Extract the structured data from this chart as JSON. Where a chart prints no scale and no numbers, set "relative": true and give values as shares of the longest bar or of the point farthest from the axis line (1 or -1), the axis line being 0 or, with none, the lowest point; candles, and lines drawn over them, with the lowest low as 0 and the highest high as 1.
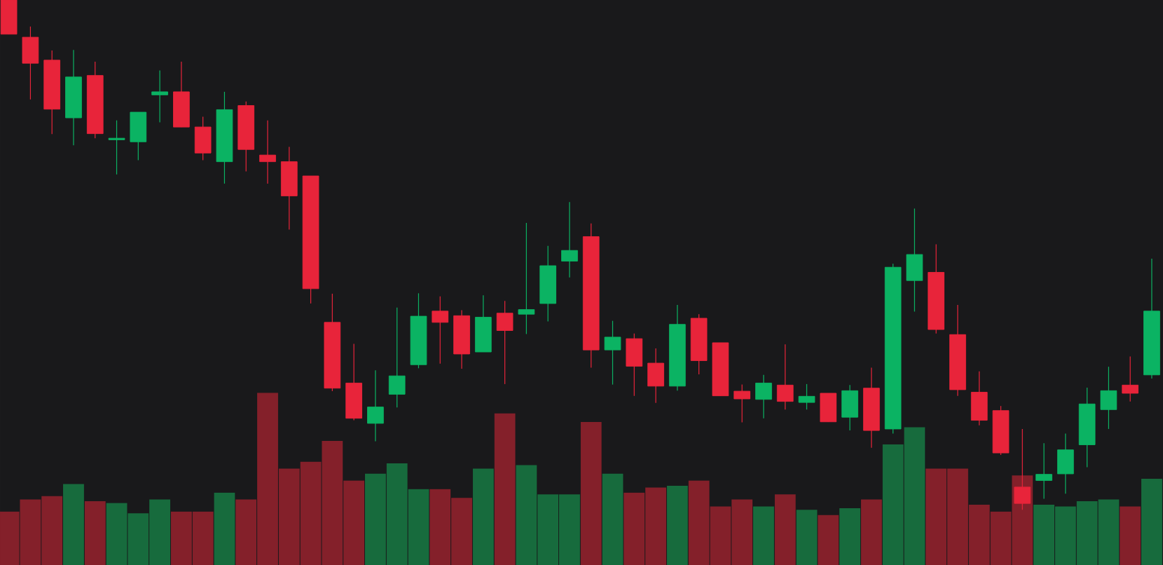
{
  "chart_data": [
    {
      "type": "candlestick",
      "relative": true,
      "categories": [
        null,
        null,
        null,
        null,
        null,
        null,
        null,
        null,
        null,
        null,
        null,
        null,
        null,
        null,
        null,
        null,
        null,
        null,
        null,
        null,
        null,
        null,
        null,
        null,
        null,
        null,
        null,
        null,
        null,
        null,
        null,
        null,
        null,
        null,
        null,
        null,
        null,
        null,
        null,
        null,
        null,
        null,
        null,
        null,
        null,
        null,
        null,
        null,
        null,
        null,
        null,
        null,
        null,
        null
      ],
      "ohlc": [
        [
          1.0,
          1.0,
          0.933,
          0.933
        ],
        [
          0.927,
          0.948,
          0.805,
          0.876
        ],
        [
          0.882,
          0.901,
          0.737,
          0.786
        ],
        [
          0.769,
          0.902,
          0.715,
          0.849
        ],
        [
          0.852,
          0.879,
          0.729,
          0.738
        ],
        [
          0.726,
          0.764,
          0.658,
          0.729
        ],
        [
          0.722,
          0.78,
          0.686,
          0.78
        ],
        [
          0.814,
          0.862,
          0.76,
          0.82
        ],
        [
          0.82,
          0.879,
          0.751,
          0.751
        ],
        [
          0.751,
          0.771,
          0.686,
          0.7
        ],
        [
          0.683,
          0.82,
          0.64,
          0.785
        ],
        [
          0.793,
          0.801,
          0.664,
          0.707
        ],
        [
          0.696,
          0.764,
          0.64,
          0.683
        ],
        [
          0.683,
          0.712,
          0.55,
          0.616
        ],
        [
          0.655,
          0.655,
          0.405,
          0.434
        ],
        [
          0.368,
          0.424,
          0.233,
          0.239
        ],
        [
          0.249,
          0.326,
          0.176,
          0.18
        ],
        [
          0.17,
          0.274,
          0.135,
          0.202
        ],
        [
          0.227,
          0.397,
          0.201,
          0.263
        ],
        [
          0.285,
          0.425,
          0.278,
          0.38
        ],
        [
          0.39,
          0.419,
          0.287,
          0.368
        ],
        [
          0.381,
          0.392,
          0.277,
          0.306
        ],
        [
          0.31,
          0.421,
          0.31,
          0.378
        ],
        [
          0.386,
          0.41,
          0.247,
          0.352
        ],
        [
          0.384,
          0.563,
          0.345,
          0.393
        ],
        [
          0.405,
          0.518,
          0.37,
          0.479
        ],
        [
          0.488,
          0.604,
          0.456,
          0.509
        ],
        [
          0.536,
          0.562,
          0.279,
          0.314
        ],
        [
          0.314,
          0.371,
          0.246,
          0.339
        ],
        [
          0.336,
          0.346,
          0.224,
          0.282
        ],
        [
          0.288,
          0.317,
          0.21,
          0.243
        ],
        [
          0.243,
          0.402,
          0.234,
          0.364
        ],
        [
          0.376,
          0.384,
          0.266,
          0.293
        ],
        [
          0.328,
          0.328,
          0.224,
          0.224
        ],
        [
          0.233,
          0.246,
          0.172,
          0.218
        ],
        [
          0.217,
          0.265,
          0.18,
          0.249
        ],
        [
          0.245,
          0.325,
          0.197,
          0.213
        ],
        [
          0.211,
          0.247,
          0.197,
          0.223
        ],
        [
          0.229,
          0.229,
          0.173,
          0.173
        ],
        [
          0.182,
          0.245,
          0.156,
          0.234
        ],
        [
          0.239,
          0.279,
          0.122,
          0.156
        ],
        [
          0.159,
          0.483,
          0.15,
          0.476
        ],
        [
          0.45,
          0.591,
          0.389,
          0.501
        ],
        [
          0.466,
          0.521,
          0.346,
          0.354
        ],
        [
          0.344,
          0.402,
          0.224,
          0.236
        ],
        [
          0.231,
          0.272,
          0.166,
          0.176
        ],
        [
          0.195,
          0.204,
          0.108,
          0.112
        ],
        [
          0.045,
          0.159,
          0.0,
          0.013
        ],
        [
          0.058,
          0.131,
          0.022,
          0.07
        ],
        [
          0.071,
          0.15,
          0.032,
          0.118
        ],
        [
          0.128,
          0.24,
          0.084,
          0.208
        ],
        [
          0.197,
          0.281,
          0.159,
          0.234
        ],
        [
          0.245,
          0.301,
          0.213,
          0.229
        ],
        [
          0.265,
          0.493,
          0.258,
          0.39
        ]
      ],
      "colors": [
        "#e8243a",
        "#e8243a",
        "#e8243a",
        "#0bb363",
        "#e8243a",
        "#0bb363",
        "#0bb363",
        "#0bb363",
        "#e8243a",
        "#e8243a",
        "#0bb363",
        "#e8243a",
        "#e8243a",
        "#e8243a",
        "#e8243a",
        "#e8243a",
        "#e8243a",
        "#0bb363",
        "#0bb363",
        "#0bb363",
        "#e8243a",
        "#e8243a",
        "#0bb363",
        "#e8243a",
        "#0bb363",
        "#0bb363",
        "#0bb363",
        "#e8243a",
        "#0bb363",
        "#e8243a",
        "#e8243a",
        "#0bb363",
        "#e8243a",
        "#e8243a",
        "#e8243a",
        "#0bb363",
        "#e8243a",
        "#0bb363",
        "#e8243a",
        "#0bb363",
        "#e8243a",
        "#0bb363",
        "#0bb363",
        "#e8243a",
        "#e8243a",
        "#e8243a",
        "#e8243a",
        "#e8243a",
        "#0bb363",
        "#0bb363",
        "#0bb363",
        "#0bb363",
        "#e8243a",
        "#0bb363"
      ]
    },
    {
      "type": "bar",
      "relative": true,
      "categories": [
        null,
        null,
        null,
        null,
        null,
        null,
        null,
        null,
        null,
        null,
        null,
        null,
        null,
        null,
        null,
        null,
        null,
        null,
        null,
        null,
        null,
        null,
        null,
        null,
        null,
        null,
        null,
        null,
        null,
        null,
        null,
        null,
        null,
        null,
        null,
        null,
        null,
        null,
        null,
        null,
        null,
        null,
        null,
        null,
        null,
        null,
        null,
        null,
        null,
        null,
        null,
        null,
        null,
        null
      ],
      "values": [
        0.31,
        0.38,
        0.4,
        0.47,
        0.37,
        0.36,
        0.3,
        0.38,
        0.31,
        0.31,
        0.42,
        0.38,
        1.0,
        0.56,
        0.6,
        0.72,
        0.49,
        0.53,
        0.59,
        0.44,
        0.44,
        0.39,
        0.56,
        0.88,
        0.58,
        0.41,
        0.41,
        0.83,
        0.53,
        0.42,
        0.45,
        0.46,
        0.49,
        0.34,
        0.38,
        0.34,
        0.41,
        0.32,
        0.29,
        0.33,
        0.38,
        0.7,
        0.8,
        0.56,
        0.56,
        0.35,
        0.31,
        0.52,
        0.35,
        0.34,
        0.37,
        0.38,
        0.34,
        0.5
      ],
      "colors": [
        "#84202a",
        "#84202a",
        "#84202a",
        "#176b3d",
        "#84202a",
        "#176b3d",
        "#176b3d",
        "#176b3d",
        "#84202a",
        "#84202a",
        "#176b3d",
        "#84202a",
        "#84202a",
        "#84202a",
        "#84202a",
        "#84202a",
        "#84202a",
        "#176b3d",
        "#176b3d",
        "#176b3d",
        "#84202a",
        "#84202a",
        "#176b3d",
        "#84202a",
        "#176b3d",
        "#176b3d",
        "#176b3d",
        "#84202a",
        "#176b3d",
        "#84202a",
        "#84202a",
        "#176b3d",
        "#84202a",
        "#84202a",
        "#84202a",
        "#176b3d",
        "#84202a",
        "#176b3d",
        "#84202a",
        "#176b3d",
        "#84202a",
        "#176b3d",
        "#176b3d",
        "#84202a",
        "#84202a",
        "#84202a",
        "#84202a",
        "#84202a",
        "#176b3d",
        "#176b3d",
        "#176b3d",
        "#176b3d",
        "#84202a",
        "#176b3d"
      ]
    }
  ]
}
